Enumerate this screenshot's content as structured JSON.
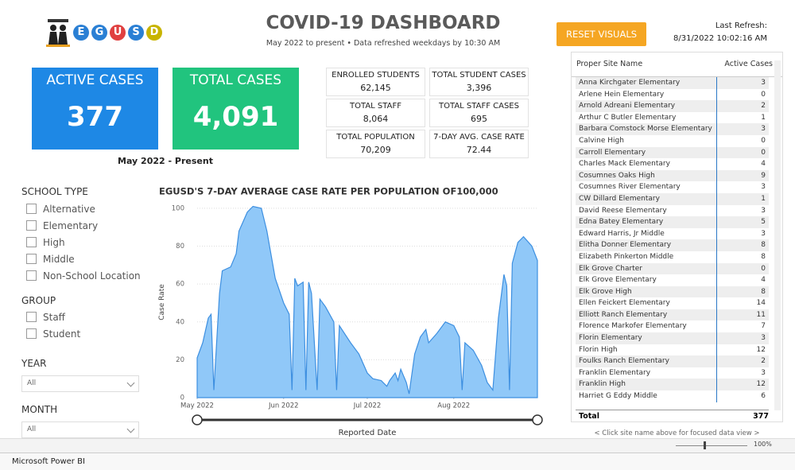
{
  "header": {
    "logo": [
      "E",
      "G",
      "U",
      "S",
      "D"
    ],
    "title": "COVID-19 DASHBOARD",
    "subtitle": "May 2022 to present • Data refreshed weekdays by 10:30 AM",
    "reset_button": "RESET VISUALS",
    "refresh_label": "Last Refresh:",
    "refresh_value": "8/31/2022 10:02:16 AM"
  },
  "kpis": [
    {
      "label": "ACTIVE CASES",
      "value": "377"
    },
    {
      "label": "TOTAL CASES",
      "value": "4,091"
    }
  ],
  "period": "May 2022 - Present",
  "stats": [
    {
      "label": "ENROLLED STUDENTS",
      "value": "62,145"
    },
    {
      "label": "TOTAL STUDENT CASES",
      "value": "3,396"
    },
    {
      "label": "TOTAL STAFF",
      "value": "8,064"
    },
    {
      "label": "TOTAL STAFF CASES",
      "value": "695"
    },
    {
      "label": "TOTAL POPULATION",
      "value": "70,209"
    },
    {
      "label": "7-DAY AVG. CASE RATE",
      "value": "72.44"
    }
  ],
  "filters": {
    "school_type": {
      "title": "SCHOOL TYPE",
      "options": [
        "Alternative",
        "Elementary",
        "High",
        "Middle",
        "Non-School Location"
      ]
    },
    "group": {
      "title": "GROUP",
      "options": [
        "Staff",
        "Student"
      ]
    },
    "year": {
      "title": "YEAR",
      "value": "All"
    },
    "month": {
      "title": "MONTH",
      "value": "All"
    }
  },
  "chart_data": {
    "type": "area",
    "title": "EGUSD'S 7-DAY AVERAGE CASE RATE PER POPULATION OF100,000",
    "y_label": "Case Rate",
    "x_label": "Reported Date",
    "color": "#90c8f8",
    "line_color": "#3d8fe0",
    "grid": true,
    "x": [
      0,
      2,
      4,
      5,
      6,
      8,
      9,
      12,
      14,
      15,
      18,
      20,
      23,
      25,
      28,
      31,
      33,
      34,
      35,
      36,
      38,
      39,
      40,
      41,
      43,
      44,
      46,
      49,
      50,
      51,
      55,
      58,
      61,
      63,
      66,
      68,
      69,
      71,
      72,
      73,
      75,
      76,
      78,
      80,
      82,
      83,
      86,
      89,
      92,
      94,
      95,
      96,
      99,
      102,
      104,
      106,
      108,
      110,
      111,
      112,
      113,
      115,
      117,
      120,
      122
    ],
    "values": [
      21,
      29,
      42,
      44,
      4,
      55,
      67,
      69,
      76,
      88,
      98,
      101,
      100,
      88,
      63,
      50,
      44,
      4,
      63,
      59,
      61,
      4,
      61,
      55,
      4,
      52,
      48,
      40,
      4,
      38,
      29,
      23,
      13,
      10,
      9,
      6,
      9,
      13,
      9,
      15,
      8,
      2,
      23,
      32,
      36,
      29,
      34,
      40,
      38,
      32,
      4,
      29,
      25,
      17,
      8,
      4,
      42,
      65,
      59,
      4,
      71,
      82,
      85,
      80,
      72.44
    ],
    "xlim": [
      0,
      122
    ],
    "xticks": [
      {
        "value": 0,
        "label": "May 2022"
      },
      {
        "value": 31,
        "label": "Jun 2022"
      },
      {
        "value": 61,
        "label": "Jul 2022"
      },
      {
        "value": 92,
        "label": "Aug 2022"
      }
    ],
    "ylim": [
      0,
      105
    ],
    "yticks": [
      0,
      20,
      40,
      60,
      80,
      100
    ]
  },
  "table": {
    "headers": [
      "Proper Site Name",
      "Active Cases"
    ],
    "rows": [
      [
        "Anna Kirchgater Elementary",
        "3"
      ],
      [
        "Arlene Hein Elementary",
        "0"
      ],
      [
        "Arnold Adreani Elementary",
        "2"
      ],
      [
        "Arthur C Butler Elementary",
        "1"
      ],
      [
        "Barbara Comstock Morse Elementary",
        "3"
      ],
      [
        "Calvine High",
        "0"
      ],
      [
        "Carroll Elementary",
        "0"
      ],
      [
        "Charles Mack Elementary",
        "4"
      ],
      [
        "Cosumnes Oaks High",
        "9"
      ],
      [
        "Cosumnes River Elementary",
        "3"
      ],
      [
        "CW Dillard Elementary",
        "1"
      ],
      [
        "David Reese Elementary",
        "3"
      ],
      [
        "Edna Batey Elementary",
        "5"
      ],
      [
        "Edward Harris, Jr Middle",
        "3"
      ],
      [
        "Elitha Donner Elementary",
        "8"
      ],
      [
        "Elizabeth Pinkerton Middle",
        "8"
      ],
      [
        "Elk Grove Charter",
        "0"
      ],
      [
        "Elk Grove Elementary",
        "4"
      ],
      [
        "Elk Grove High",
        "8"
      ],
      [
        "Ellen Feickert Elementary",
        "14"
      ],
      [
        "Elliott Ranch Elementary",
        "11"
      ],
      [
        "Florence Markofer Elementary",
        "7"
      ],
      [
        "Florin Elementary",
        "3"
      ],
      [
        "Florin High",
        "12"
      ],
      [
        "Foulks Ranch Elementary",
        "2"
      ],
      [
        "Franklin Elementary",
        "3"
      ],
      [
        "Franklin High",
        "12"
      ],
      [
        "Harriet G Eddy Middle",
        "6"
      ]
    ],
    "total": [
      "Total",
      "377"
    ],
    "note": "< Click site name above for focused data view >"
  },
  "status_bar": {
    "zoom": "100%",
    "app": "Microsoft Power BI"
  }
}
